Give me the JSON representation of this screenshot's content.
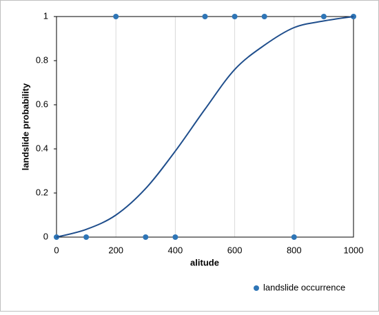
{
  "chart_data": {
    "type": "scatter",
    "x_label": "alitude",
    "y_label": "landslide probability",
    "xlim": [
      0,
      1000
    ],
    "xticks": [
      0,
      200,
      400,
      600,
      800,
      1000
    ],
    "ylim": [
      0,
      1
    ],
    "yticks": [
      0,
      0.2,
      0.4,
      0.6,
      0.8,
      1
    ],
    "grid": "x",
    "legend": "bottom-right",
    "series": [
      {
        "name": "landslide occurrence",
        "type": "scatter",
        "color": "#2e75b6",
        "x": [
          0,
          100,
          200,
          300,
          400,
          500,
          600,
          700,
          800,
          900,
          1000
        ],
        "values": [
          0,
          0,
          1,
          0,
          0,
          1,
          1,
          1,
          0,
          1,
          1
        ]
      },
      {
        "type": "line",
        "color": "#1f4e8c",
        "x": [
          0,
          100,
          200,
          300,
          400,
          500,
          600,
          700,
          800,
          900,
          1000
        ],
        "values": [
          0,
          0.035,
          0.1,
          0.22,
          0.39,
          0.58,
          0.76,
          0.87,
          0.95,
          0.98,
          1
        ]
      }
    ]
  }
}
